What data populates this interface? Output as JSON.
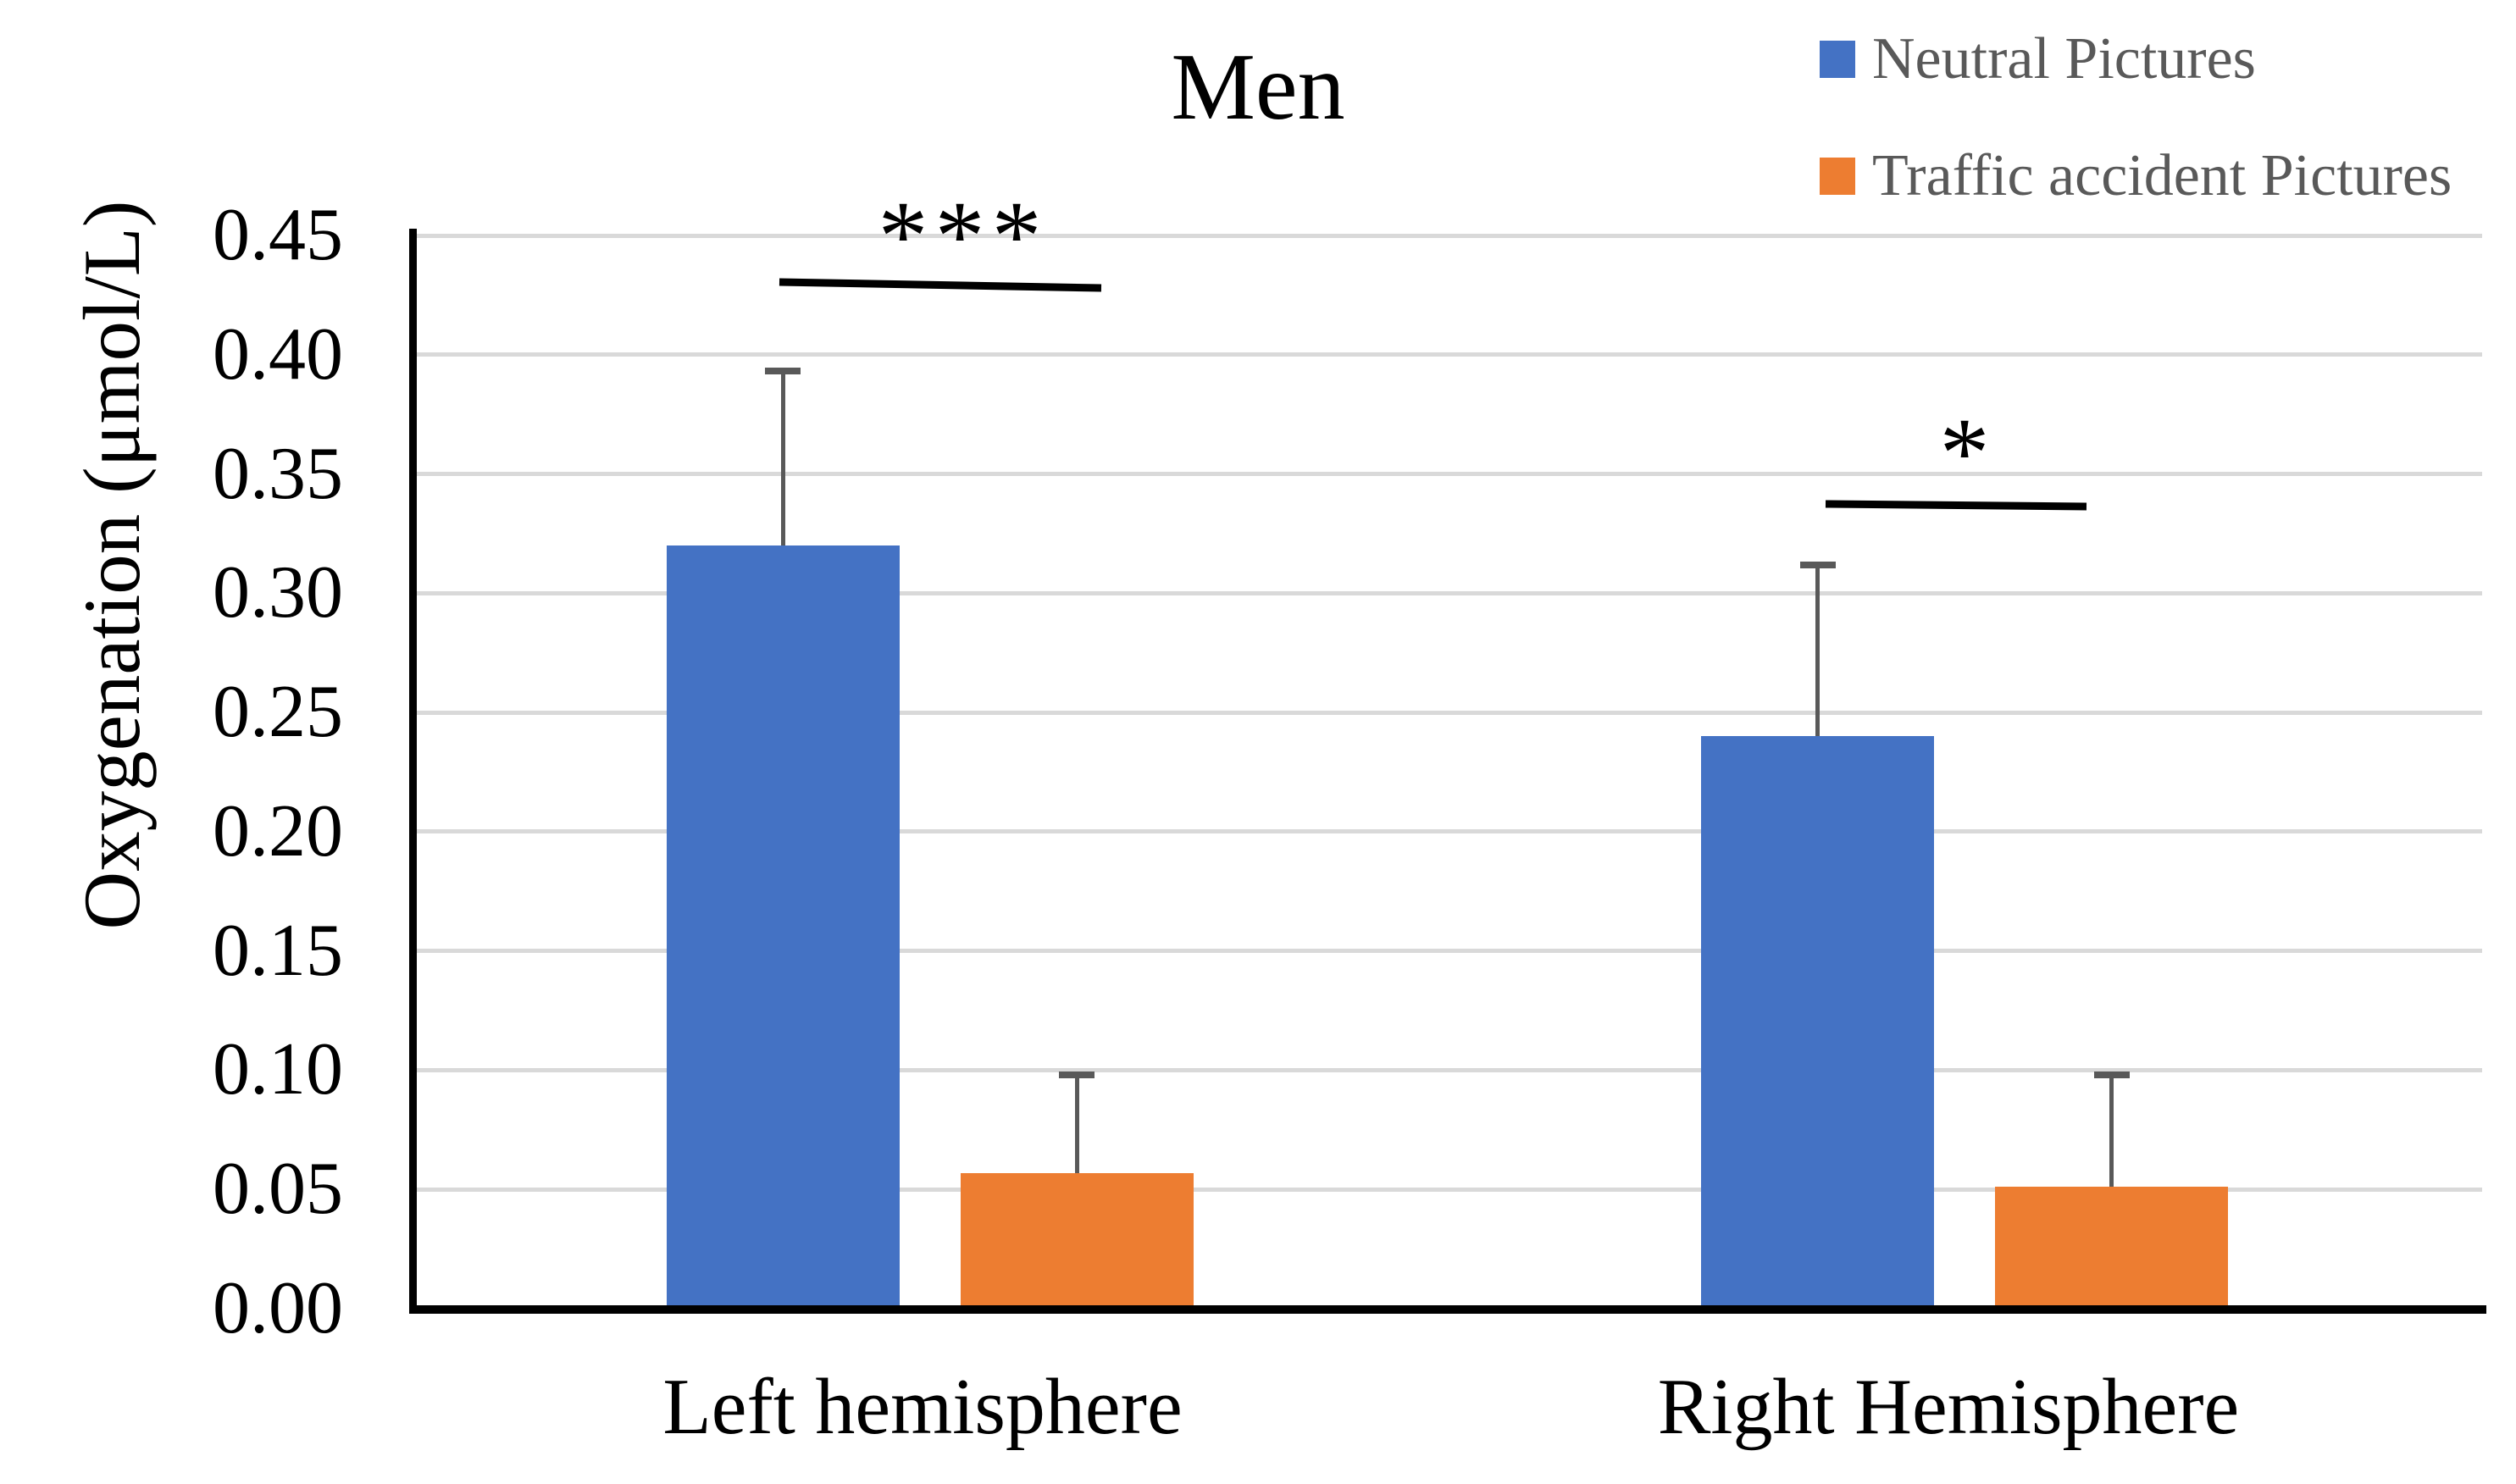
{
  "chart_data": {
    "type": "bar",
    "title": "Men",
    "categories": [
      "Left hemisphere",
      "Right Hemisphere"
    ],
    "series": [
      {
        "name": "Neutral Pictures",
        "color": "#4472c4",
        "values": [
          0.32,
          0.24
        ],
        "error_sd": [
          0.073,
          0.072
        ]
      },
      {
        "name": "Traffic accident Pictures",
        "color": "#ed7d31",
        "values": [
          0.057,
          0.051
        ],
        "error_sd": [
          0.041,
          0.047
        ]
      }
    ],
    "xlabel": "",
    "ylabel": "Oxygenation (μmol/L)",
    "ylim": [
      0,
      0.45
    ],
    "ytick_step": 0.05,
    "yticks": [
      "0.45",
      "0.40",
      "0.35",
      "0.30",
      "0.25",
      "0.20",
      "0.15",
      "0.10",
      "0.05",
      "0.00"
    ],
    "grid": true,
    "legend_position": "top-right",
    "error_bar_color": "#595959",
    "gridline_color": "#d9d9d9",
    "annotations": [
      {
        "text": "***",
        "pair": "Left hemisphere",
        "text_x": 1137,
        "text_top": 220,
        "line": {
          "x1": 920,
          "y1": 333,
          "x2": 1300,
          "y2": 340
        }
      },
      {
        "text": "*",
        "pair": "Right Hemisphere",
        "text_x": 2323,
        "text_top": 476,
        "line": {
          "x1": 2155,
          "y1": 595,
          "x2": 2463,
          "y2": 598
        }
      }
    ]
  }
}
